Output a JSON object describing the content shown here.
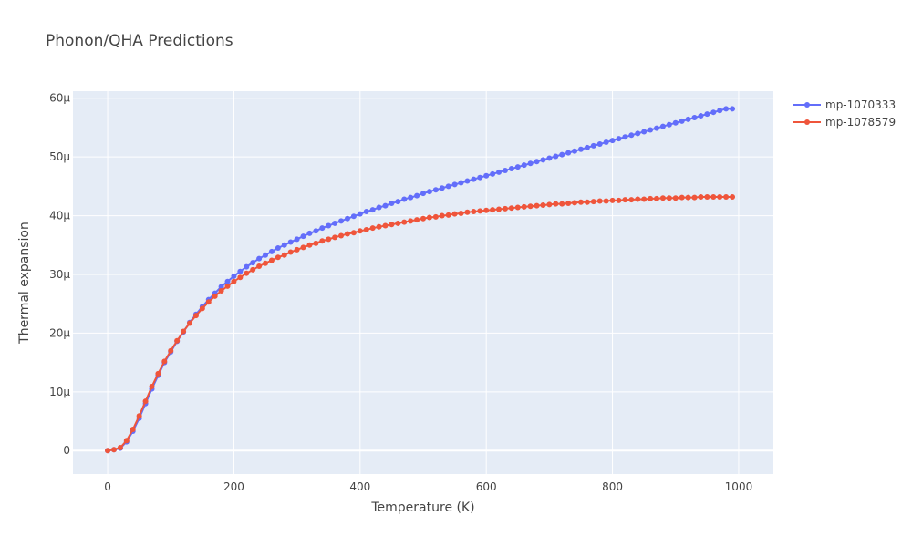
{
  "chart_data": {
    "type": "line",
    "title": "Phonon/QHA Predictions",
    "xlabel": "Temperature (K)",
    "ylabel": "Thermal expansion",
    "xlim": [
      -55,
      1055
    ],
    "ylim": [
      -4e-06,
      6.12e-05
    ],
    "x_ticks": [
      0,
      200,
      400,
      600,
      800,
      1000
    ],
    "x_tick_labels": [
      "0",
      "200",
      "400",
      "600",
      "800",
      "1000"
    ],
    "y_ticks": [
      0,
      1e-05,
      2e-05,
      3e-05,
      4e-05,
      5e-05,
      6e-05
    ],
    "y_tick_labels": [
      "0",
      "10μ",
      "20μ",
      "30μ",
      "40μ",
      "50μ",
      "60μ"
    ],
    "grid": true,
    "legend_position": "top-right",
    "x": [
      0,
      10,
      20,
      30,
      40,
      50,
      60,
      70,
      80,
      90,
      100,
      110,
      120,
      130,
      140,
      150,
      160,
      170,
      180,
      190,
      200,
      210,
      220,
      230,
      240,
      250,
      260,
      270,
      280,
      290,
      300,
      310,
      320,
      330,
      340,
      350,
      360,
      370,
      380,
      390,
      400,
      410,
      420,
      430,
      440,
      450,
      460,
      470,
      480,
      490,
      500,
      510,
      520,
      530,
      540,
      550,
      560,
      570,
      580,
      590,
      600,
      610,
      620,
      630,
      640,
      650,
      660,
      670,
      680,
      690,
      700,
      710,
      720,
      730,
      740,
      750,
      760,
      770,
      780,
      790,
      800,
      810,
      820,
      830,
      840,
      850,
      860,
      870,
      880,
      890,
      900,
      910,
      920,
      930,
      940,
      950,
      960,
      970,
      980,
      990
    ],
    "series": [
      {
        "name": "mp-1070333",
        "color": "#636efa",
        "values": [
          0,
          1.5e-07,
          4e-07,
          1.5e-06,
          3.3e-06,
          5.5e-06,
          8e-06,
          1.05e-05,
          1.28e-05,
          1.5e-05,
          1.68e-05,
          1.86e-05,
          2.02e-05,
          2.18e-05,
          2.32e-05,
          2.45e-05,
          2.57e-05,
          2.68e-05,
          2.79e-05,
          2.88e-05,
          2.97e-05,
          3.05e-05,
          3.13e-05,
          3.2e-05,
          3.27e-05,
          3.33e-05,
          3.39e-05,
          3.45e-05,
          3.5e-05,
          3.55e-05,
          3.6e-05,
          3.65e-05,
          3.7e-05,
          3.74e-05,
          3.79e-05,
          3.83e-05,
          3.87e-05,
          3.91e-05,
          3.95e-05,
          3.99e-05,
          4.03e-05,
          4.07e-05,
          4.1e-05,
          4.14e-05,
          4.17e-05,
          4.21e-05,
          4.24e-05,
          4.28e-05,
          4.31e-05,
          4.34e-05,
          4.38e-05,
          4.41e-05,
          4.44e-05,
          4.47e-05,
          4.5e-05,
          4.53e-05,
          4.56e-05,
          4.59e-05,
          4.62e-05,
          4.65e-05,
          4.68e-05,
          4.71e-05,
          4.74e-05,
          4.77e-05,
          4.8e-05,
          4.83e-05,
          4.86e-05,
          4.89e-05,
          4.92e-05,
          4.95e-05,
          4.98e-05,
          5.01e-05,
          5.04e-05,
          5.07e-05,
          5.1e-05,
          5.13e-05,
          5.16e-05,
          5.19e-05,
          5.22e-05,
          5.25e-05,
          5.28e-05,
          5.31e-05,
          5.34e-05,
          5.37e-05,
          5.4e-05,
          5.43e-05,
          5.46e-05,
          5.49e-05,
          5.52e-05,
          5.55e-05,
          5.58e-05,
          5.61e-05,
          5.64e-05,
          5.67e-05,
          5.7e-05,
          5.73e-05,
          5.76e-05,
          5.79e-05,
          5.82e-05,
          5.82e-05
        ]
      },
      {
        "name": "mp-1078579",
        "color": "#ef553b",
        "values": [
          0,
          1.5e-07,
          5e-07,
          1.7e-06,
          3.6e-06,
          5.9e-06,
          8.4e-06,
          1.09e-05,
          1.31e-05,
          1.52e-05,
          1.7e-05,
          1.87e-05,
          2.03e-05,
          2.17e-05,
          2.3e-05,
          2.42e-05,
          2.53e-05,
          2.63e-05,
          2.72e-05,
          2.8e-05,
          2.88e-05,
          2.95e-05,
          3.02e-05,
          3.08e-05,
          3.14e-05,
          3.19e-05,
          3.24e-05,
          3.29e-05,
          3.33e-05,
          3.38e-05,
          3.42e-05,
          3.46e-05,
          3.5e-05,
          3.53e-05,
          3.57e-05,
          3.6e-05,
          3.63e-05,
          3.66e-05,
          3.69e-05,
          3.71e-05,
          3.74e-05,
          3.76e-05,
          3.79e-05,
          3.81e-05,
          3.83e-05,
          3.85e-05,
          3.87e-05,
          3.89e-05,
          3.91e-05,
          3.93e-05,
          3.95e-05,
          3.97e-05,
          3.98e-05,
          4e-05,
          4.01e-05,
          4.03e-05,
          4.04e-05,
          4.06e-05,
          4.07e-05,
          4.08e-05,
          4.09e-05,
          4.1e-05,
          4.11e-05,
          4.12e-05,
          4.13e-05,
          4.14e-05,
          4.15e-05,
          4.16e-05,
          4.17e-05,
          4.18e-05,
          4.19e-05,
          4.2e-05,
          4.2e-05,
          4.21e-05,
          4.22e-05,
          4.23e-05,
          4.23e-05,
          4.24e-05,
          4.25e-05,
          4.25e-05,
          4.26e-05,
          4.26e-05,
          4.27e-05,
          4.27e-05,
          4.28e-05,
          4.28e-05,
          4.29e-05,
          4.29e-05,
          4.3e-05,
          4.3e-05,
          4.3e-05,
          4.31e-05,
          4.31e-05,
          4.31e-05,
          4.32e-05,
          4.32e-05,
          4.32e-05,
          4.32e-05,
          4.32e-05,
          4.32e-05
        ]
      }
    ]
  }
}
